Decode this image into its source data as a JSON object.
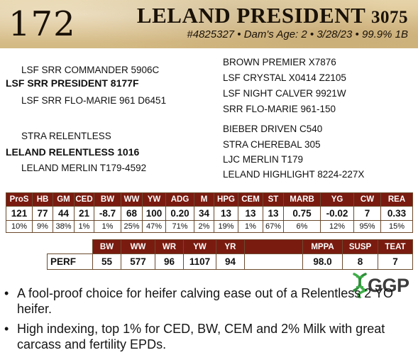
{
  "header": {
    "lot_number": "172",
    "bull_name": "LELAND PRESIDENT",
    "bull_reg": "3075",
    "meta": "#4825327 • Dam's Age: 2 • 3/28/23 • 99.9% 1B"
  },
  "pedigree": {
    "sire_sire": "LSF SRR COMMANDER 5906C",
    "sire": "LSF SRR PRESIDENT 8177F",
    "sire_dam": "LSF SRR FLO-MARIE 961 D6451",
    "dam_sire": "STRA RELENTLESS",
    "dam": "LELAND RELENTLESS 1016",
    "dam_dam": "LELAND MERLIN T179-4592",
    "sire_side_far": [
      "BROWN PREMIER X7876",
      "LSF CRYSTAL X0414 Z2105",
      "LSF NIGHT CALVER 9921W",
      "SRR FLO-MARIE 961-150"
    ],
    "dam_side_far": [
      "BIEBER DRIVEN C540",
      "STRA CHEREBAL 305",
      "LJC MERLIN T179",
      "LELAND HIGHLIGHT 8224-227X"
    ]
  },
  "epd": {
    "headers": [
      "ProS",
      "HB",
      "GM",
      "CED",
      "BW",
      "WW",
      "YW",
      "ADG",
      "M",
      "HPG",
      "CEM",
      "ST",
      "MARB",
      "YG",
      "CW",
      "REA"
    ],
    "values": [
      "121",
      "77",
      "44",
      "21",
      "-8.7",
      "68",
      "100",
      "0.20",
      "34",
      "13",
      "13",
      "13",
      "0.75",
      "-0.02",
      "7",
      "0.33"
    ],
    "percentiles": [
      "10%",
      "9%",
      "38%",
      "1%",
      "1%",
      "25%",
      "47%",
      "71%",
      "2%",
      "19%",
      "1%",
      "67%",
      "6%",
      "12%",
      "95%",
      "15%"
    ]
  },
  "performance": {
    "headers": [
      "BW",
      "WW",
      "WR",
      "YW",
      "YR",
      "MPPA",
      "SUSP",
      "TEAT"
    ],
    "row_label": "PERF",
    "values": [
      "55",
      "577",
      "96",
      "1107",
      "94",
      "98.0",
      "8",
      "7"
    ]
  },
  "logo": {
    "text": "GGP",
    "color": "#3fae49"
  },
  "bullets": [
    "A fool-proof choice for heifer calving ease out of a Relentless 2 YO heifer.",
    "High indexing, top 1% for CED, BW, CEM and 2% Milk with great carcass and fertility EPDs."
  ],
  "colors": {
    "header_bg": "#dcc493",
    "table_header": "#7a1b10"
  }
}
